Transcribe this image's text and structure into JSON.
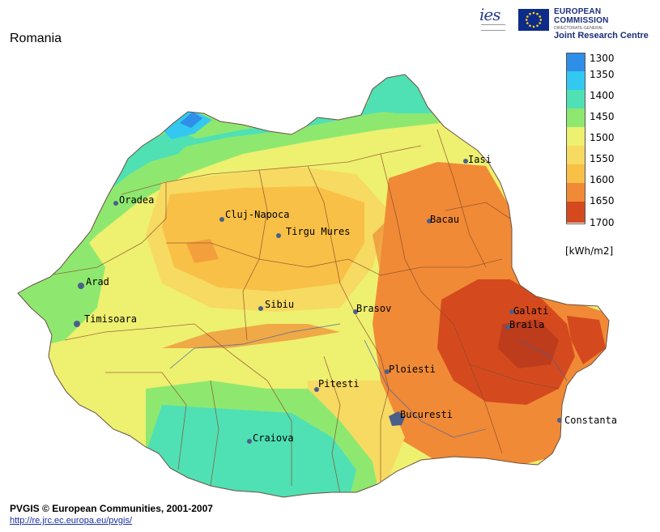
{
  "title": "Romania",
  "logos": {
    "ies": "ies",
    "org_line1": "EUROPEAN COMMISSION",
    "org_line2": "DIRECTORATE-GENERAL",
    "org_line3": "Joint Research Centre"
  },
  "legend": {
    "unit": "[kWh/m2]",
    "classes": [
      {
        "label": "1300",
        "color": "#2e8ee8"
      },
      {
        "label": "1350",
        "color": "#33c8f0"
      },
      {
        "label": "1400",
        "color": "#4fe0b4"
      },
      {
        "label": "1450",
        "color": "#8ee870"
      },
      {
        "label": "1500",
        "color": "#eef070"
      },
      {
        "label": "1550",
        "color": "#f6da62"
      },
      {
        "label": "1600",
        "color": "#f8c046"
      },
      {
        "label": "1650",
        "color": "#f08a36"
      },
      {
        "label": "1700",
        "color": "#d44a1e"
      }
    ]
  },
  "cities": [
    "Iasi",
    "Oradea",
    "Cluj-Napoca",
    "Bacau",
    "Tirgu Mures",
    "Arad",
    "Sibiu",
    "Brasov",
    "Galati",
    "Timisoara",
    "Braila",
    "Ploiesti",
    "Pitesti",
    "Bucuresti",
    "Constanta",
    "Craiova"
  ],
  "credit": "PVGIS © European Communities, 2001-2007",
  "url": "http://re.jrc.ec.europa.eu/pvgis/"
}
